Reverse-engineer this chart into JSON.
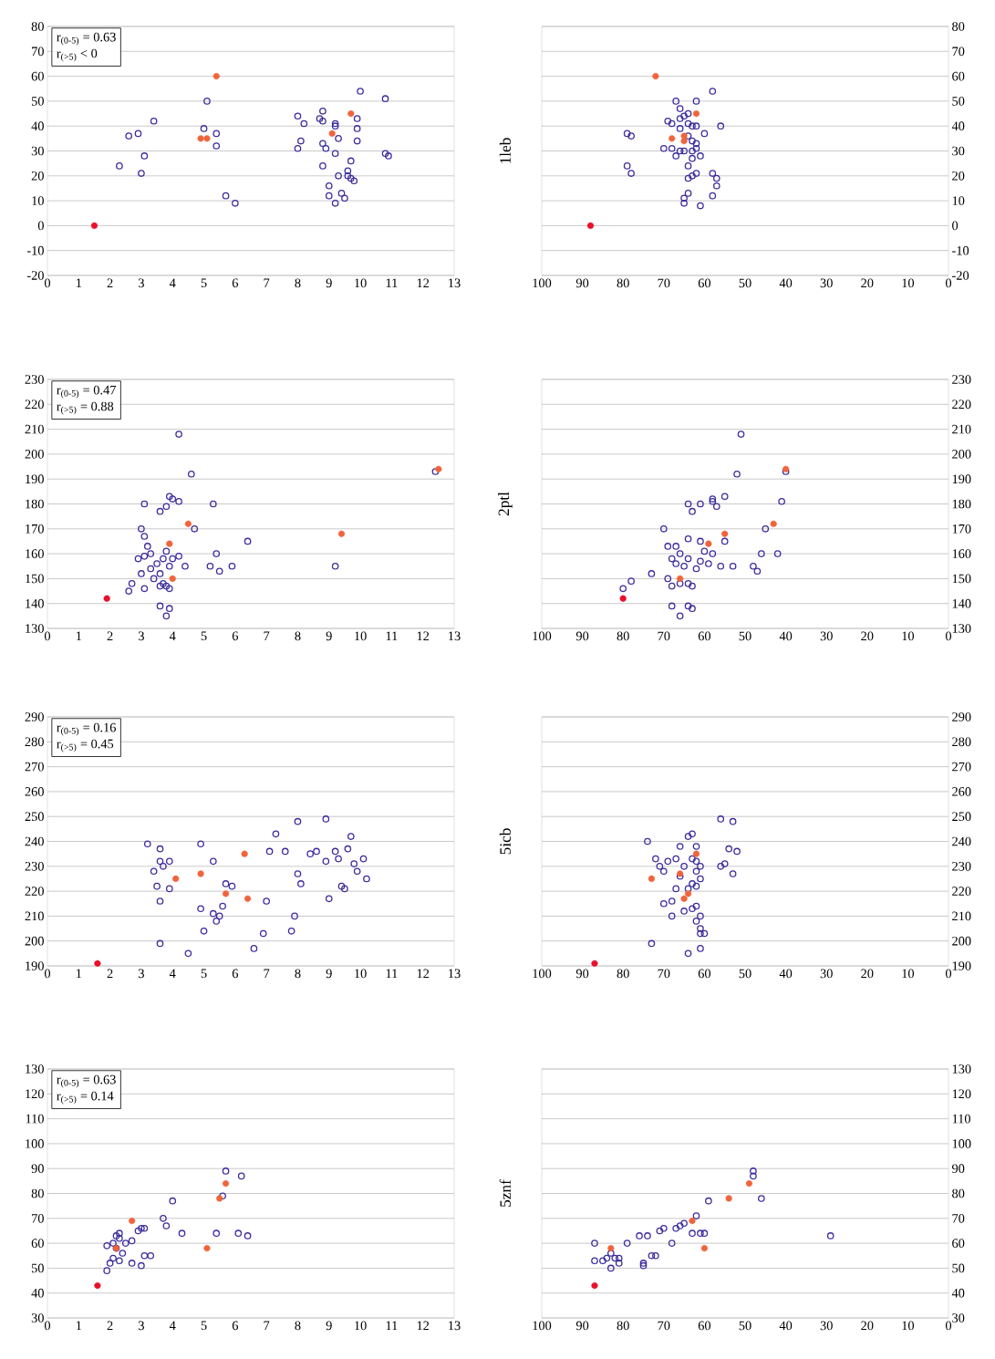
{
  "chart_data": [
    {
      "type": "scatter",
      "xlim": [
        0,
        13
      ],
      "xticks": [
        0,
        1,
        2,
        3,
        4,
        5,
        6,
        7,
        8,
        9,
        10,
        11,
        12,
        13
      ],
      "ylim": [
        -20,
        80
      ],
      "yticks": [
        -20,
        -10,
        0,
        10,
        20,
        30,
        40,
        50,
        60,
        70,
        80
      ],
      "grid": "y",
      "marker": "circle",
      "annotations": [
        "r$_{(0-5)}$ = 0.63",
        "r$_{(>5)}$ < 0"
      ],
      "series": [
        {
          "color": "#3c2d9c",
          "x": [
            2.3,
            2.6,
            2.9,
            3.0,
            3.1,
            3.4,
            5.1,
            5.0,
            5.4,
            5.4,
            5.7,
            6.0,
            8.0,
            8.0,
            8.1,
            8.2,
            8.7,
            8.8,
            8.8,
            8.8,
            8.8,
            8.9,
            9.0,
            9.0,
            9.2,
            9.2,
            9.2,
            9.2,
            9.3,
            9.3,
            9.4,
            9.5,
            9.6,
            9.6,
            9.7,
            9.7,
            9.9,
            9.9,
            9.9,
            10.0,
            10.8,
            10.8,
            10.9,
            9.8
          ],
          "values": [
            24,
            36,
            37,
            21,
            28,
            42,
            50,
            39,
            37,
            32,
            12,
            9,
            44,
            31,
            34,
            41,
            43,
            46,
            42,
            33,
            24,
            31,
            16,
            12,
            40,
            41,
            29,
            9,
            35,
            20,
            13,
            11,
            22,
            20,
            26,
            19,
            43,
            39,
            34,
            54,
            51,
            29,
            28,
            18
          ]
        },
        {
          "color": "#f0643c",
          "x": [
            5.4,
            4.9,
            5.1,
            9.1,
            9.7
          ],
          "values": [
            60,
            35,
            35,
            37,
            45
          ]
        },
        {
          "color": "#e8102a",
          "x": [
            1.5
          ],
          "values": [
            0
          ]
        }
      ]
    },
    {
      "type": "scatter",
      "xlim": [
        100,
        0
      ],
      "xticks": [
        100,
        90,
        80,
        70,
        60,
        50,
        40,
        30,
        20,
        10,
        0
      ],
      "ylim": [
        -20,
        80
      ],
      "yticks": [
        -20,
        -10,
        0,
        10,
        20,
        30,
        40,
        50,
        60,
        70,
        80
      ],
      "grid": "y",
      "marker": "circle",
      "ylabel": "1leb",
      "series": [
        {
          "color": "#3c2d9c",
          "x": [
            79,
            78,
            79,
            78,
            67,
            62,
            58,
            68,
            69,
            66,
            65,
            64,
            63,
            66,
            64,
            63,
            62,
            62,
            61,
            63,
            65,
            66,
            67,
            68,
            70,
            64,
            63,
            64,
            62,
            58,
            57,
            57,
            58,
            64,
            65,
            65,
            61,
            56,
            60,
            64,
            66,
            62,
            63
          ],
          "values": [
            37,
            36,
            24,
            21,
            50,
            50,
            54,
            41,
            42,
            43,
            44,
            41,
            40,
            39,
            36,
            34,
            33,
            31,
            28,
            30,
            30,
            30,
            28,
            31,
            31,
            24,
            20,
            19,
            21,
            21,
            19,
            16,
            12,
            13,
            11,
            9,
            8,
            40,
            37,
            45,
            47,
            40,
            27
          ]
        },
        {
          "color": "#f0643c",
          "x": [
            72,
            68,
            65,
            65,
            62
          ],
          "values": [
            60,
            35,
            34,
            36,
            45
          ]
        },
        {
          "color": "#e8102a",
          "x": [
            88
          ],
          "values": [
            0
          ]
        }
      ]
    },
    {
      "type": "scatter",
      "xlim": [
        0,
        13
      ],
      "xticks": [
        0,
        1,
        2,
        3,
        4,
        5,
        6,
        7,
        8,
        9,
        10,
        11,
        12,
        13
      ],
      "ylim": [
        130,
        230
      ],
      "yticks": [
        130,
        140,
        150,
        160,
        170,
        180,
        190,
        200,
        210,
        220,
        230
      ],
      "grid": "y",
      "marker": "circle",
      "annotations": [
        "r$_{(0-5)}$ = 0.47",
        "r$_{(>5)}$ = 0.88"
      ],
      "series": [
        {
          "color": "#3c2d9c",
          "x": [
            3.1,
            3.0,
            3.1,
            3.2,
            2.9,
            3.1,
            3.3,
            3.0,
            2.6,
            2.7,
            3.1,
            3.4,
            3.3,
            3.5,
            3.6,
            3.6,
            3.7,
            3.8,
            3.9,
            3.7,
            3.8,
            3.9,
            4.0,
            3.6,
            3.8,
            3.9,
            4.0,
            4.2,
            4.2,
            4.2,
            4.4,
            4.6,
            4.7,
            3.6,
            3.8,
            3.9,
            5.2,
            5.3,
            5.4,
            5.5,
            5.9,
            6.4,
            9.2,
            12.4
          ],
          "values": [
            180,
            170,
            167,
            163,
            158,
            159,
            160,
            152,
            145,
            148,
            146,
            150,
            154,
            156,
            152,
            147,
            148,
            147,
            146,
            158,
            161,
            155,
            158,
            177,
            179,
            183,
            182,
            181,
            208,
            159,
            155,
            192,
            170,
            139,
            135,
            138,
            155,
            180,
            160,
            153,
            155,
            165,
            155,
            193
          ]
        },
        {
          "color": "#f0643c",
          "x": [
            3.9,
            4.0,
            4.5,
            9.4,
            12.5
          ],
          "values": [
            164,
            150,
            172,
            168,
            194
          ]
        },
        {
          "color": "#e8102a",
          "x": [
            1.9
          ],
          "values": [
            142
          ]
        }
      ]
    },
    {
      "type": "scatter",
      "xlim": [
        100,
        0
      ],
      "xticks": [
        100,
        90,
        80,
        70,
        60,
        50,
        40,
        30,
        20,
        10,
        0
      ],
      "ylim": [
        130,
        230
      ],
      "yticks": [
        130,
        140,
        150,
        160,
        170,
        180,
        190,
        200,
        210,
        220,
        230
      ],
      "grid": "y",
      "marker": "circle",
      "ylabel": "2ptl",
      "series": [
        {
          "color": "#3c2d9c",
          "x": [
            80,
            78,
            73,
            70,
            69,
            68,
            66,
            67,
            69,
            68,
            66,
            64,
            63,
            65,
            64,
            62,
            61,
            60,
            61,
            64,
            59,
            58,
            56,
            53,
            58,
            58,
            57,
            55,
            61,
            64,
            63,
            52,
            51,
            45,
            46,
            48,
            47,
            42,
            41,
            40,
            55,
            68,
            66,
            64,
            63,
            67
          ],
          "values": [
            146,
            149,
            152,
            170,
            163,
            158,
            160,
            156,
            150,
            147,
            148,
            148,
            147,
            155,
            158,
            154,
            157,
            161,
            165,
            166,
            156,
            160,
            155,
            155,
            182,
            181,
            179,
            183,
            180,
            180,
            177,
            192,
            208,
            170,
            160,
            155,
            153,
            160,
            181,
            193,
            165,
            139,
            135,
            139,
            138,
            163
          ]
        },
        {
          "color": "#f0643c",
          "x": [
            66,
            59,
            55,
            43,
            40
          ],
          "values": [
            150,
            164,
            168,
            172,
            194
          ]
        },
        {
          "color": "#e8102a",
          "x": [
            80
          ],
          "values": [
            142
          ]
        }
      ]
    },
    {
      "type": "scatter",
      "xlim": [
        0,
        13
      ],
      "xticks": [
        0,
        1,
        2,
        3,
        4,
        5,
        6,
        7,
        8,
        9,
        10,
        11,
        12,
        13
      ],
      "ylim": [
        190,
        290
      ],
      "yticks": [
        190,
        200,
        210,
        220,
        230,
        240,
        250,
        260,
        270,
        280,
        290
      ],
      "grid": "y",
      "marker": "circle",
      "annotations": [
        "r$_{(0-5)}$ = 0.16",
        "r$_{(>5)}$ = 0.45"
      ],
      "series": [
        {
          "color": "#3c2d9c",
          "x": [
            3.2,
            3.4,
            3.6,
            3.6,
            3.7,
            3.5,
            3.6,
            3.9,
            3.9,
            3.6,
            4.5,
            4.9,
            4.9,
            5.0,
            5.3,
            5.3,
            5.4,
            5.5,
            5.6,
            5.7,
            5.9,
            6.6,
            7.0,
            6.9,
            7.1,
            7.3,
            7.6,
            7.8,
            7.9,
            8.0,
            8.1,
            8.0,
            8.4,
            8.6,
            8.9,
            8.9,
            9.0,
            9.2,
            9.3,
            9.4,
            9.5,
            9.6,
            9.7,
            9.8,
            9.9,
            10.1,
            10.2
          ],
          "values": [
            239,
            228,
            237,
            232,
            230,
            222,
            216,
            221,
            232,
            199,
            195,
            239,
            213,
            204,
            232,
            211,
            208,
            210,
            214,
            223,
            222,
            197,
            216,
            203,
            236,
            243,
            236,
            204,
            210,
            227,
            223,
            248,
            235,
            236,
            249,
            232,
            217,
            236,
            233,
            222,
            221,
            237,
            242,
            231,
            228,
            233,
            225
          ]
        },
        {
          "color": "#f0643c",
          "x": [
            4.1,
            4.9,
            5.7,
            6.3,
            6.4
          ],
          "values": [
            225,
            227,
            219,
            235,
            217
          ]
        },
        {
          "color": "#e8102a",
          "x": [
            1.6
          ],
          "values": [
            191
          ]
        }
      ]
    },
    {
      "type": "scatter",
      "xlim": [
        100,
        0
      ],
      "xticks": [
        100,
        90,
        80,
        70,
        60,
        50,
        40,
        30,
        20,
        10,
        0
      ],
      "ylim": [
        190,
        290
      ],
      "yticks": [
        190,
        200,
        210,
        220,
        230,
        240,
        250,
        260,
        270,
        280,
        290
      ],
      "grid": "y",
      "marker": "circle",
      "ylabel": "5icb",
      "series": [
        {
          "color": "#3c2d9c",
          "x": [
            74,
            72,
            71,
            70,
            69,
            67,
            66,
            65,
            64,
            63,
            62,
            63,
            62,
            61,
            62,
            61,
            63,
            62,
            64,
            66,
            67,
            68,
            70,
            68,
            65,
            63,
            62,
            61,
            61,
            60,
            61,
            62,
            64,
            61,
            73,
            56,
            53,
            54,
            52,
            53,
            55,
            56
          ],
          "values": [
            240,
            233,
            230,
            228,
            232,
            233,
            238,
            230,
            242,
            243,
            238,
            233,
            232,
            230,
            228,
            225,
            223,
            222,
            221,
            226,
            221,
            216,
            215,
            210,
            212,
            213,
            208,
            205,
            203,
            203,
            210,
            214,
            195,
            197,
            199,
            249,
            248,
            237,
            236,
            227,
            231,
            230
          ]
        },
        {
          "color": "#f0643c",
          "x": [
            73,
            66,
            65,
            64,
            62
          ],
          "values": [
            225,
            227,
            217,
            219,
            235
          ]
        },
        {
          "color": "#e8102a",
          "x": [
            87
          ],
          "values": [
            191
          ]
        }
      ]
    },
    {
      "type": "scatter",
      "xlim": [
        0,
        13
      ],
      "xticks": [
        0,
        1,
        2,
        3,
        4,
        5,
        6,
        7,
        8,
        9,
        10,
        11,
        12,
        13
      ],
      "ylim": [
        30,
        130
      ],
      "yticks": [
        30,
        40,
        50,
        60,
        70,
        80,
        90,
        100,
        110,
        120,
        130
      ],
      "grid": "y",
      "marker": "circle",
      "annotations": [
        "r$_{(0-5)}$ = 0.63",
        "r$_{(>5)}$ = 0.14"
      ],
      "series": [
        {
          "color": "#3c2d9c",
          "x": [
            1.9,
            2.0,
            1.9,
            2.1,
            2.2,
            2.3,
            2.2,
            2.3,
            2.4,
            2.5,
            2.7,
            2.7,
            2.9,
            3.0,
            3.1,
            3.0,
            3.1,
            3.3,
            3.7,
            3.8,
            4.0,
            4.3,
            5.4,
            5.6,
            5.7,
            6.1,
            6.2,
            6.4,
            2.1,
            2.3
          ],
          "values": [
            59,
            52,
            49,
            54,
            63,
            64,
            58,
            53,
            56,
            60,
            61,
            52,
            65,
            66,
            66,
            51,
            55,
            55,
            70,
            67,
            77,
            64,
            64,
            79,
            89,
            64,
            87,
            63,
            60,
            62
          ]
        },
        {
          "color": "#f0643c",
          "x": [
            2.2,
            2.7,
            5.1,
            5.5,
            5.7
          ],
          "values": [
            58,
            69,
            58,
            78,
            84
          ]
        },
        {
          "color": "#e8102a",
          "x": [
            1.6
          ],
          "values": [
            43
          ]
        }
      ]
    },
    {
      "type": "scatter",
      "xlim": [
        100,
        0
      ],
      "xticks": [
        100,
        90,
        80,
        70,
        60,
        50,
        40,
        30,
        20,
        10,
        0
      ],
      "ylim": [
        30,
        130
      ],
      "yticks": [
        30,
        40,
        50,
        60,
        70,
        80,
        90,
        100,
        110,
        120,
        130
      ],
      "grid": "y",
      "marker": "circle",
      "ylabel": "5znf",
      "series": [
        {
          "color": "#3c2d9c",
          "x": [
            87,
            87,
            85,
            84,
            83,
            82,
            81,
            81,
            79,
            76,
            75,
            75,
            73,
            72,
            74,
            71,
            70,
            68,
            67,
            66,
            65,
            63,
            62,
            61,
            60,
            59,
            48,
            48,
            46,
            29,
            83
          ],
          "values": [
            60,
            53,
            53,
            54,
            50,
            54,
            54,
            52,
            60,
            63,
            51,
            52,
            55,
            55,
            63,
            65,
            66,
            60,
            66,
            67,
            68,
            64,
            71,
            64,
            64,
            77,
            89,
            87,
            78,
            63,
            56
          ]
        },
        {
          "color": "#f0643c",
          "x": [
            83,
            63,
            60,
            54,
            49
          ],
          "values": [
            58,
            69,
            58,
            78,
            84
          ]
        },
        {
          "color": "#e8102a",
          "x": [
            87
          ],
          "values": [
            43
          ]
        }
      ]
    }
  ]
}
